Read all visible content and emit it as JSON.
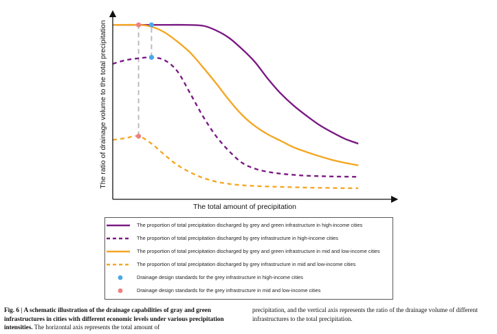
{
  "chart_data": {
    "type": "line",
    "title": "",
    "xlabel": "The total amount of precipitation",
    "ylabel": "The ratio of drainage volume to the total precipitation",
    "xlim": [
      0,
      100
    ],
    "ylim": [
      0,
      100
    ],
    "ticks": "none",
    "grid": false,
    "legend_position": "below",
    "series": [
      {
        "name": "The proportion of total precipitation discharged by grey and green infrastructure in high-income cities",
        "color": "#7b1a84",
        "style": "solid",
        "x": [
          0,
          15,
          20,
          28,
          35,
          40,
          45,
          50,
          55,
          60,
          65,
          70,
          75,
          80,
          85,
          90,
          95
        ],
        "y": [
          94,
          94,
          94,
          94,
          93.5,
          91,
          87,
          81,
          74,
          65,
          57,
          50.5,
          45,
          40,
          36,
          32.5,
          30
        ]
      },
      {
        "name": "The proportion of total precipitation discharged by grey infrastructure in high-income cities",
        "color": "#7b1a84",
        "style": "dashed",
        "x": [
          0,
          5,
          10,
          15,
          20,
          25,
          30,
          35,
          40,
          45,
          50,
          55,
          60,
          65,
          70,
          75,
          80,
          85,
          90,
          95
        ],
        "y": [
          73,
          75,
          76,
          76.5,
          75,
          69,
          57,
          44.5,
          34,
          26,
          19.7,
          16.5,
          14.8,
          13.8,
          13.2,
          12.7,
          12.5,
          12.3,
          12.2,
          12.1
        ]
      },
      {
        "name": "The proportion of total precipitation discharged by grey and green infrastructure in mid and low-income cities",
        "color": "#f5a623",
        "style": "solid",
        "x": [
          0,
          10,
          15,
          20,
          25,
          30,
          35,
          40,
          45,
          50,
          55,
          60,
          65,
          70,
          75,
          80,
          85,
          90,
          95
        ],
        "y": [
          94,
          94,
          93,
          90,
          85,
          79,
          71,
          62.5,
          53.5,
          45.5,
          39.5,
          35,
          31.5,
          28,
          25.5,
          23.2,
          21.2,
          19.6,
          18.3
        ]
      },
      {
        "name": "The proportion of total precipitation discharged by grey infrastructure in mid and low-income cities",
        "color": "#f5a623",
        "style": "dashed",
        "x": [
          0,
          5,
          10,
          15,
          20,
          25,
          30,
          35,
          40,
          45,
          50,
          55,
          60,
          65,
          70,
          75,
          80,
          85,
          90,
          95
        ],
        "y": [
          32,
          33,
          34,
          30,
          24,
          18.5,
          14.5,
          11.5,
          9.5,
          8.3,
          7.6,
          7.2,
          6.9,
          6.7,
          6.5,
          6.3,
          6.2,
          6.1,
          6.0,
          6.0
        ]
      }
    ],
    "markers": [
      {
        "name": "Drainage design standards for the grey infrastructure in high-income cities",
        "color": "#4aa8e8",
        "points": [
          [
            15,
            94
          ],
          [
            15,
            76.5
          ]
        ]
      },
      {
        "name": "Drainage design standards for the grey infrastructure in mid and low-income cities",
        "color": "#f08080",
        "points": [
          [
            10,
            94
          ],
          [
            10,
            34
          ]
        ]
      }
    ],
    "guides": [
      {
        "color": "#bbbbbb",
        "style": "dashed",
        "x": 10,
        "y": [
          34,
          94
        ]
      },
      {
        "color": "#bbbbbb",
        "style": "dashed",
        "x": 15,
        "y": [
          76.5,
          94
        ]
      }
    ]
  },
  "legend": {
    "items": [
      {
        "kind": "line",
        "style": "solid",
        "color": "#7b1a84",
        "label": "The proportion of total precipitation discharged by grey and green infrastructure in high-income cities"
      },
      {
        "kind": "line",
        "style": "dashed",
        "color": "#7b1a84",
        "label": "The proportion of total precipitation discharged by grey infrastructure in high-income cities"
      },
      {
        "kind": "line",
        "style": "solid",
        "color": "#f5a623",
        "label": "The proportion of total precipitation discharged by grey and green infrastructure in mid and low-income cities"
      },
      {
        "kind": "line",
        "style": "dashed",
        "color": "#f5a623",
        "label": "The proportion of total precipitation discharged by grey infrastructure in mid and low-income cities"
      },
      {
        "kind": "dot",
        "color": "#4aa8e8",
        "label": "Drainage design standards for the grey infrastructure in high-income cities"
      },
      {
        "kind": "dot",
        "color": "#f08080",
        "label": "Drainage design standards for the grey infrastructure in mid and low-income cities"
      }
    ]
  },
  "caption": {
    "fig_label": "Fig. 6 |",
    "bold_title": "A schematic illustration of the drainage capabilities of gray and green infrastructures in cities with different economic levels under various precipitation intensities.",
    "text_left": "The horizontal axis represents the total amount of",
    "text_right": "precipitation, and the vertical axis represents the ratio of the drainage volume of different infrastructures to the total precipitation."
  }
}
